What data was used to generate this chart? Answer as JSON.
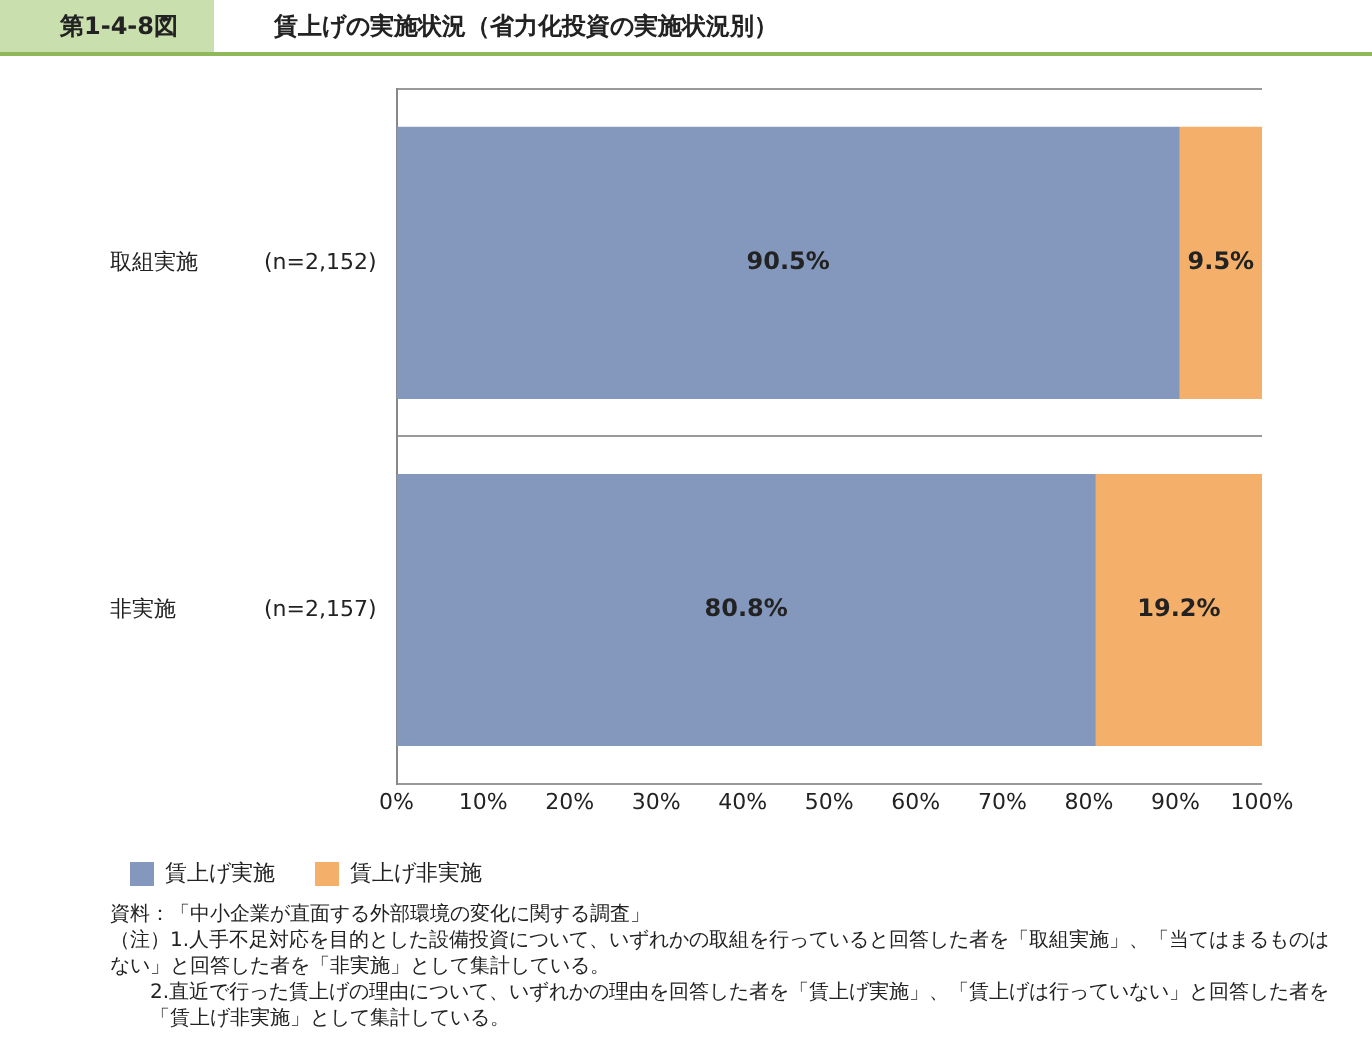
{
  "chart_data": {
    "type": "bar",
    "subtitle": "第1-4-8図",
    "title": "賃上げの実施状況（省力化投資の実施状況別）",
    "categories": [
      "取組実施　　　(n=2,152)",
      "非実施　　　　(n=2,157)"
    ],
    "orientation": "horizontal",
    "stacked": true,
    "series": [
      {
        "name": "賃上げ実施",
        "color": "#8497bd",
        "values": [
          90.5,
          80.8
        ],
        "value_labels": [
          "90.5%",
          "80.8%"
        ]
      },
      {
        "name": "賃上げ非実施",
        "color": "#f4b06a",
        "values": [
          9.5,
          19.2
        ],
        "value_labels": [
          "9.5%",
          "19.2%"
        ]
      }
    ],
    "xlim": [
      0,
      100
    ],
    "xticks": [
      {
        "value": 0,
        "label": "0%"
      },
      {
        "value": 10,
        "label": "10%"
      },
      {
        "value": 20,
        "label": "20%"
      },
      {
        "value": 30,
        "label": "30%"
      },
      {
        "value": 40,
        "label": "40%"
      },
      {
        "value": 50,
        "label": "50%"
      },
      {
        "value": 60,
        "label": "60%"
      },
      {
        "value": 70,
        "label": "70%"
      },
      {
        "value": 80,
        "label": "80%"
      },
      {
        "value": 90,
        "label": "90%"
      },
      {
        "value": 100,
        "label": "100%"
      }
    ],
    "grid": "y",
    "legend": "bottom left",
    "annotations": [
      "資料：「中小企業が直面する外部環境の変化に関する調査」",
      "（注）1.人手不足対応を目的とした設備投資について、いずれかの取組を行っていると回答した者を「取組実施」、「当てはまるものはない」と回答した者を「非実施」として集計している。",
      "2.直近で行った賃上げの理由について、いずれかの理由を回答した者を「賃上げ実施」、「賃上げは行っていない」と回答した者を「賃上げ非実施」として集計している。"
    ]
  }
}
